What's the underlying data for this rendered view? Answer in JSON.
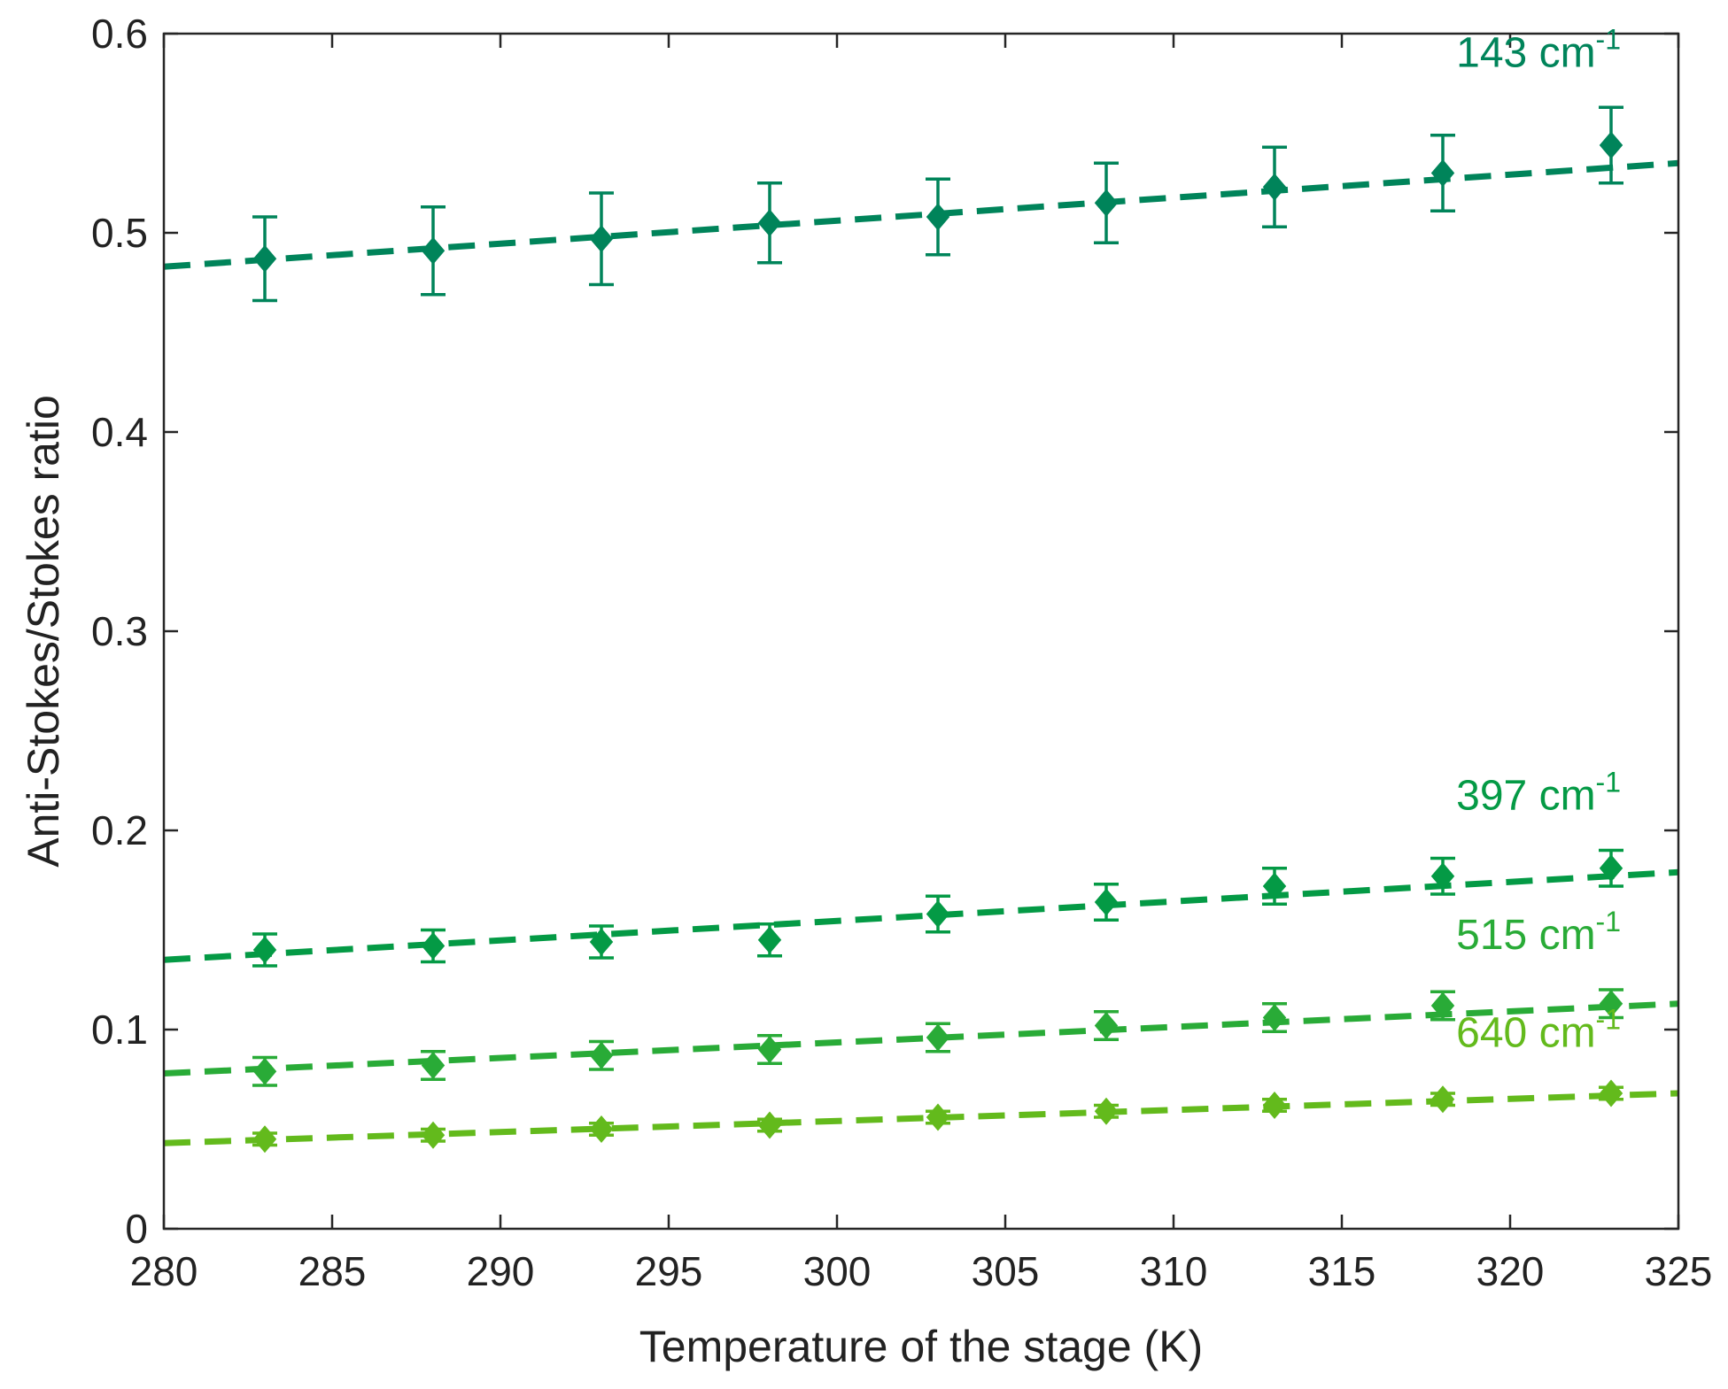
{
  "chart_data": {
    "type": "scatter",
    "title": "",
    "xlabel": "Temperature of the stage (K)",
    "ylabel": "Anti-Stokes/Stokes ratio",
    "xlim": [
      280,
      325
    ],
    "ylim": [
      0,
      0.6
    ],
    "xticks": [
      280,
      285,
      290,
      295,
      300,
      305,
      310,
      315,
      320,
      325
    ],
    "xtick_labels": [
      "280",
      "285",
      "290",
      "295",
      "300",
      "305",
      "310",
      "315",
      "320",
      "325"
    ],
    "yticks": [
      0,
      0.1,
      0.2,
      0.3,
      0.4,
      0.5,
      0.6
    ],
    "ytick_labels": [
      "0",
      "0.1",
      "0.2",
      "0.3",
      "0.4",
      "0.5",
      "0.6"
    ],
    "grid": false,
    "x": [
      283,
      288,
      293,
      298,
      303,
      308,
      313,
      318,
      323
    ],
    "series": [
      {
        "name": "143 cm-1",
        "label_main": "143 cm",
        "label_sup": "-1",
        "color": "#00845a",
        "values": [
          0.487,
          0.491,
          0.497,
          0.505,
          0.508,
          0.515,
          0.523,
          0.53,
          0.544
        ],
        "errors": [
          0.021,
          0.022,
          0.023,
          0.02,
          0.019,
          0.02,
          0.02,
          0.019,
          0.019
        ],
        "fit": [
          280,
          0.483,
          325,
          0.535
        ]
      },
      {
        "name": "397 cm-1",
        "label_main": "397 cm",
        "label_sup": "-1",
        "color": "#049a45",
        "values": [
          0.14,
          0.142,
          0.144,
          0.145,
          0.158,
          0.164,
          0.172,
          0.177,
          0.181
        ],
        "errors": [
          0.008,
          0.008,
          0.008,
          0.008,
          0.009,
          0.009,
          0.009,
          0.009,
          0.009
        ],
        "fit": [
          280,
          0.135,
          325,
          0.179
        ]
      },
      {
        "name": "515 cm-1",
        "label_main": "515 cm",
        "label_sup": "-1",
        "color": "#29ab37",
        "values": [
          0.079,
          0.082,
          0.087,
          0.09,
          0.096,
          0.102,
          0.106,
          0.112,
          0.113
        ],
        "errors": [
          0.007,
          0.007,
          0.007,
          0.007,
          0.007,
          0.007,
          0.007,
          0.007,
          0.007
        ],
        "fit": [
          280,
          0.078,
          325,
          0.113
        ]
      },
      {
        "name": "640 cm-1",
        "label_main": "640 cm",
        "label_sup": "-1",
        "color": "#63ba1c",
        "values": [
          0.045,
          0.047,
          0.05,
          0.052,
          0.056,
          0.059,
          0.062,
          0.065,
          0.068
        ],
        "errors": [
          0.003,
          0.003,
          0.003,
          0.003,
          0.003,
          0.003,
          0.003,
          0.003,
          0.003
        ],
        "fit": [
          280,
          0.043,
          325,
          0.068
        ]
      }
    ]
  }
}
